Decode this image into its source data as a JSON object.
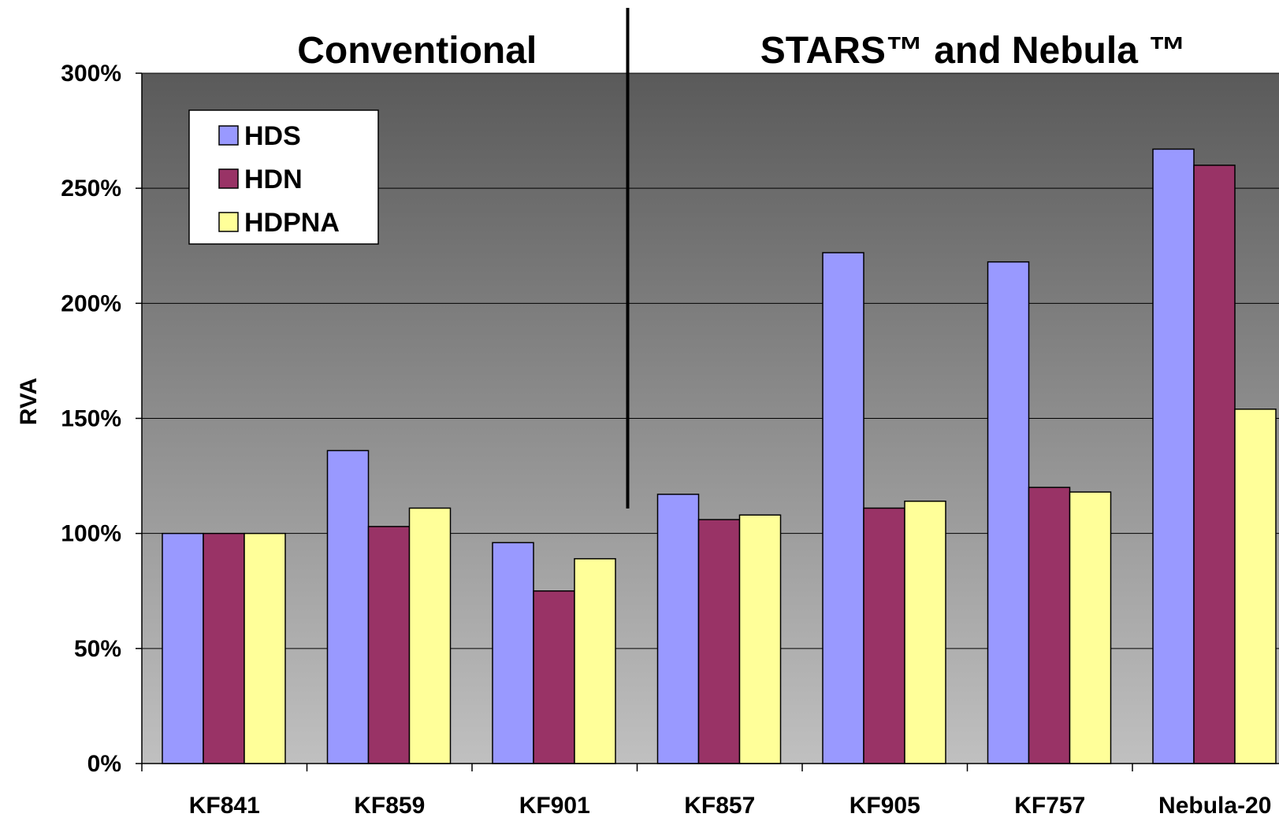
{
  "chart_data": {
    "type": "bar",
    "ylabel": "RVA",
    "xlabel": "",
    "ylim": [
      0,
      300
    ],
    "yticks": [
      0,
      50,
      100,
      150,
      200,
      250,
      300
    ],
    "ytick_labels": [
      "0%",
      "50%",
      "100%",
      "150%",
      "200%",
      "250%",
      "300%"
    ],
    "categories": [
      "KF841",
      "KF859",
      "KF901",
      "KF857",
      "KF905",
      "KF757",
      "Nebula-20"
    ],
    "series": [
      {
        "name": "HDS",
        "color": "#9999ff",
        "values": [
          100,
          136,
          96,
          117,
          222,
          218,
          267
        ]
      },
      {
        "name": "HDN",
        "color": "#993366",
        "values": [
          100,
          103,
          75,
          106,
          111,
          120,
          260
        ]
      },
      {
        "name": "HDPNA",
        "color": "#ffff99",
        "values": [
          100,
          111,
          89,
          108,
          114,
          118,
          154
        ]
      }
    ],
    "group_titles": [
      {
        "text": "Conventional",
        "categories": [
          0,
          2
        ]
      },
      {
        "text": "STARS™  and  Nebula ™",
        "categories": [
          3,
          6
        ]
      }
    ],
    "grid": true,
    "legend": "top-left",
    "background": "gradient dark gray (top) to light gray (bottom)"
  },
  "colors": {
    "plot_top": "#5a5a5a",
    "plot_bottom": "#c0c0c0",
    "gridline": "#000000"
  }
}
